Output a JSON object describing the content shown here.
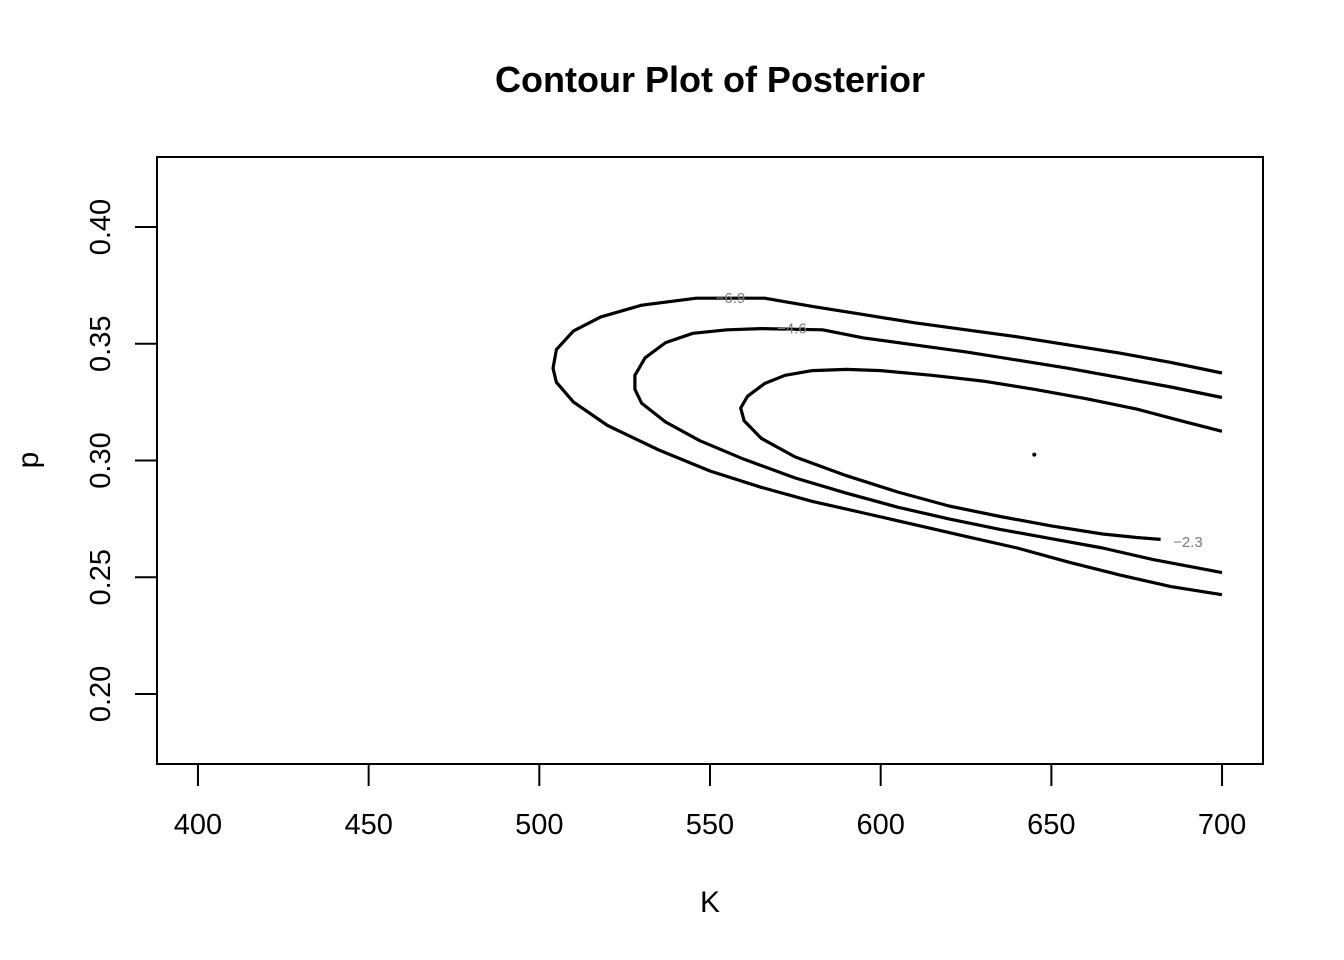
{
  "chart_data": {
    "type": "contour",
    "title": "Contour Plot of Posterior",
    "xlabel": "K",
    "ylabel": "p",
    "xlim": [
      388,
      712
    ],
    "ylim": [
      0.17,
      0.43
    ],
    "x_ticks": [
      400,
      450,
      500,
      550,
      600,
      650,
      700
    ],
    "x_tick_labels": [
      "400",
      "450",
      "500",
      "550",
      "600",
      "650",
      "700"
    ],
    "y_ticks": [
      0.2,
      0.25,
      0.3,
      0.35,
      0.4
    ],
    "y_tick_labels": [
      "0.20",
      "0.25",
      "0.30",
      "0.35",
      "0.40"
    ],
    "grid": false,
    "legend": "none",
    "mode_point": {
      "x": 645,
      "y": 0.3025
    },
    "levels": [
      {
        "label": "−2.3",
        "label_at": {
          "x": 690,
          "y": 0.265
        },
        "points": [
          [
            700,
            0.3125
          ],
          [
            688,
            0.317
          ],
          [
            675,
            0.322
          ],
          [
            660,
            0.3265
          ],
          [
            645,
            0.3305
          ],
          [
            630,
            0.334
          ],
          [
            615,
            0.3365
          ],
          [
            600,
            0.3385
          ],
          [
            590,
            0.339
          ],
          [
            580,
            0.3385
          ],
          [
            572,
            0.3365
          ],
          [
            566,
            0.333
          ],
          [
            561,
            0.3275
          ],
          [
            559,
            0.3225
          ],
          [
            560,
            0.317
          ],
          [
            565,
            0.3095
          ],
          [
            575,
            0.3015
          ],
          [
            590,
            0.2935
          ],
          [
            605,
            0.2865
          ],
          [
            620,
            0.2805
          ],
          [
            635,
            0.276
          ],
          [
            650,
            0.272
          ],
          [
            665,
            0.2685
          ],
          [
            675,
            0.267
          ],
          [
            682,
            0.2662
          ]
        ]
      },
      {
        "label": "−4.6",
        "label_at": {
          "x": 574,
          "y": 0.3565
        },
        "points": [
          [
            700,
            0.327
          ],
          [
            685,
            0.3315
          ],
          [
            670,
            0.3355
          ],
          [
            655,
            0.3395
          ],
          [
            640,
            0.343
          ],
          [
            625,
            0.3465
          ],
          [
            610,
            0.3495
          ],
          [
            595,
            0.3525
          ],
          [
            583,
            0.356
          ],
          [
            565,
            0.3565
          ],
          [
            555,
            0.356
          ],
          [
            545,
            0.3545
          ],
          [
            537,
            0.3505
          ],
          [
            531,
            0.344
          ],
          [
            528,
            0.3365
          ],
          [
            528,
            0.3305
          ],
          [
            530,
            0.3245
          ],
          [
            537,
            0.3165
          ],
          [
            547,
            0.3085
          ],
          [
            560,
            0.3005
          ],
          [
            575,
            0.2925
          ],
          [
            590,
            0.286
          ],
          [
            605,
            0.28
          ],
          [
            620,
            0.275
          ],
          [
            635,
            0.2705
          ],
          [
            650,
            0.2665
          ],
          [
            665,
            0.2625
          ],
          [
            680,
            0.2575
          ],
          [
            700,
            0.252
          ]
        ]
      },
      {
        "label": "−6.9",
        "label_at": {
          "x": 556,
          "y": 0.3695
        },
        "points": [
          [
            700,
            0.3375
          ],
          [
            685,
            0.342
          ],
          [
            670,
            0.346
          ],
          [
            655,
            0.3495
          ],
          [
            640,
            0.353
          ],
          [
            625,
            0.356
          ],
          [
            610,
            0.359
          ],
          [
            595,
            0.3625
          ],
          [
            580,
            0.366
          ],
          [
            566,
            0.3695
          ],
          [
            546,
            0.3695
          ],
          [
            530,
            0.3665
          ],
          [
            518,
            0.3615
          ],
          [
            510,
            0.3555
          ],
          [
            505,
            0.3475
          ],
          [
            504,
            0.3395
          ],
          [
            505,
            0.3335
          ],
          [
            510,
            0.325
          ],
          [
            520,
            0.315
          ],
          [
            535,
            0.3045
          ],
          [
            550,
            0.2955
          ],
          [
            565,
            0.2885
          ],
          [
            580,
            0.2825
          ],
          [
            595,
            0.2775
          ],
          [
            610,
            0.2725
          ],
          [
            625,
            0.2675
          ],
          [
            640,
            0.2625
          ],
          [
            655,
            0.2565
          ],
          [
            670,
            0.251
          ],
          [
            685,
            0.246
          ],
          [
            700,
            0.2425
          ]
        ]
      }
    ]
  }
}
